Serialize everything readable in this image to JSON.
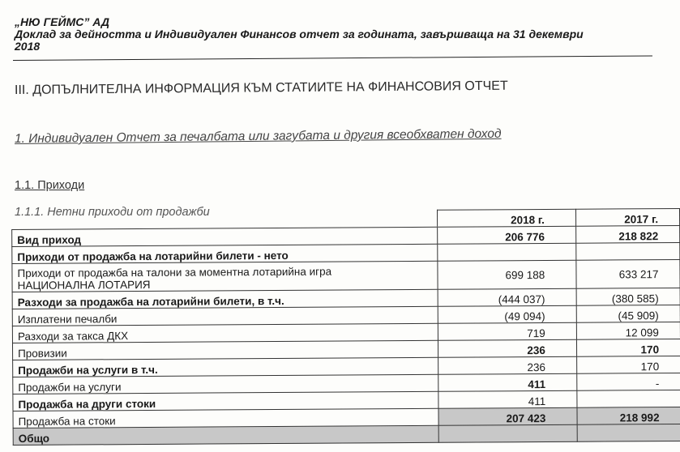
{
  "header": {
    "company": "„НЮ ГЕЙМС” АД",
    "report_line1": "Доклад за дейността и Индивидуален Финансов отчет за годината, завършваща на 31 декември",
    "report_line2": "2018"
  },
  "section_title": "III. ДОПЪЛНИТЕЛНА ИНФОРМАЦИЯ КЪМ СТАТИИТЕ НА ФИНАНСОВИЯ ОТЧЕТ",
  "subsection1": "1. Индивидуален Отчет за печалбата или загубата и другия всеобхватен доход",
  "subsection2": "1.1. Приходи",
  "subsection3": "1.1.1. Нетни приходи от продажби",
  "table": {
    "columns": [
      "2018 г.",
      "2017 г."
    ],
    "rows": [
      {
        "label": "Вид приход",
        "v2018": "206 776",
        "v2017": "218 822"
      },
      {
        "label": "Приходи от продажба на лотарийни билети - нето",
        "v2018": "",
        "v2017": ""
      },
      {
        "label": "Приходи от продажба на талони за моментна лотарийна игра",
        "label2": "НАЦИОНАЛНА ЛОТАРИЯ",
        "v2018": "699 188",
        "v2017": "633 217"
      },
      {
        "label": "Разходи за продажба на лотарийни билети, в т.ч.",
        "v2018": "(444 037)",
        "v2017": "(380 585)"
      },
      {
        "label": "Изплатени печалби",
        "v2018": "(49 094)",
        "v2017": "(45 909)"
      },
      {
        "label": "Разходи за такса ДКХ",
        "v2018": "719",
        "v2017": "12 099"
      },
      {
        "label": "Провизии",
        "v2018": "236",
        "v2017": "170"
      },
      {
        "label": "Продажби на услуги в т.ч.",
        "v2018": "236",
        "v2017": "170"
      },
      {
        "label": "Продажби на услуги",
        "v2018": "411",
        "v2017": "-"
      },
      {
        "label": "Продажба на други стоки",
        "v2018": "411",
        "v2017": ""
      },
      {
        "label": "Продажба на стоки",
        "v2018": "207 423",
        "v2017": "218 992"
      },
      {
        "label": "Общо",
        "v2018": "",
        "v2017": ""
      }
    ]
  }
}
